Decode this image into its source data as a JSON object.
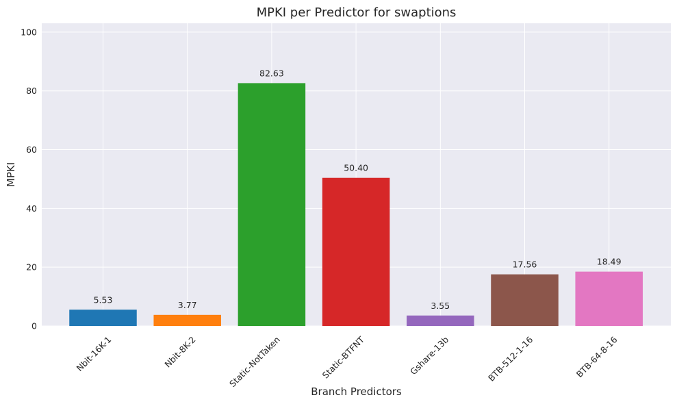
{
  "chart_data": {
    "type": "bar",
    "title": "MPKI per Predictor for swaptions",
    "xlabel": "Branch Predictors",
    "ylabel": "MPKI",
    "categories": [
      "Nbit-16K-1",
      "Nbit-8K-2",
      "Static-NotTaken",
      "Static-BTFNT",
      "Gshare-13b",
      "BTB-512-1-16",
      "BTB-64-8-16"
    ],
    "values": [
      5.53,
      3.77,
      82.63,
      50.4,
      3.55,
      17.56,
      18.49
    ],
    "value_labels": [
      "5.53",
      "3.77",
      "82.63",
      "50.40",
      "3.55",
      "17.56",
      "18.49"
    ],
    "colors": [
      "#1f77b4",
      "#ff7f0e",
      "#2ca02c",
      "#d62728",
      "#9467bd",
      "#8c564b",
      "#e377c2"
    ],
    "ylim": [
      0,
      103
    ],
    "yticks": [
      0,
      20,
      40,
      60,
      80,
      100
    ],
    "grid": true,
    "background_color": "#eaeaf2",
    "grid_color": "#ffffff"
  }
}
